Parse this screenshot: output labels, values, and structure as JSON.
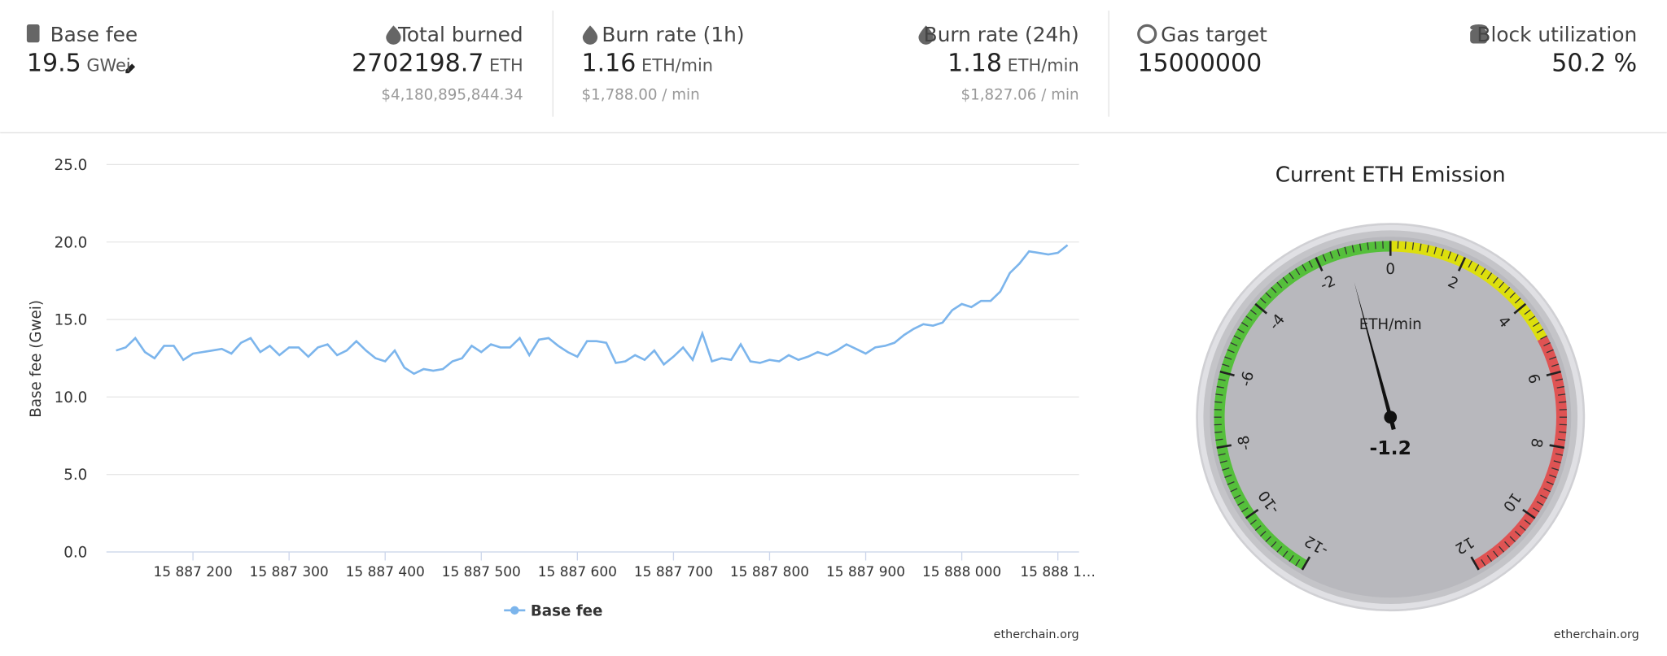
{
  "stats": [
    {
      "label": "Base fee",
      "value": "19.5",
      "unit": "GWei"
    },
    {
      "label": "Total burned",
      "value": "2702198.7",
      "unit": "ETH",
      "usd": "$4,180,895,844.34"
    },
    {
      "label": "Burn rate (1h)",
      "value": "1.16",
      "unit": "ETH/min",
      "usd": "$1,788.00 / min"
    },
    {
      "label": "Burn rate (24h)",
      "value": "1.18",
      "unit": "ETH/min",
      "usd": "$1,827.06 / min"
    },
    {
      "label": "Gas target",
      "value": "15000000"
    },
    {
      "label": "Block utilization",
      "value": "50.2 %"
    }
  ],
  "chart_data": [
    {
      "type": "line",
      "ylabel": "Base fee (Gwei)",
      "credit": "etherchain.org",
      "x": [
        15887120,
        15887130,
        15887140,
        15887150,
        15887160,
        15887170,
        15887180,
        15887190,
        15887200,
        15887210,
        15887220,
        15887230,
        15887240,
        15887250,
        15887260,
        15887270,
        15887280,
        15887290,
        15887300,
        15887310,
        15887320,
        15887330,
        15887340,
        15887350,
        15887360,
        15887370,
        15887380,
        15887390,
        15887400,
        15887410,
        15887420,
        15887430,
        15887440,
        15887450,
        15887460,
        15887470,
        15887480,
        15887490,
        15887500,
        15887510,
        15887520,
        15887530,
        15887540,
        15887550,
        15887560,
        15887570,
        15887580,
        15887590,
        15887600,
        15887610,
        15887620,
        15887630,
        15887640,
        15887650,
        15887660,
        15887670,
        15887680,
        15887690,
        15887700,
        15887710,
        15887720,
        15887730,
        15887740,
        15887750,
        15887760,
        15887770,
        15887780,
        15887790,
        15887800,
        15887810,
        15887820,
        15887830,
        15887840,
        15887850,
        15887860,
        15887870,
        15887880,
        15887890,
        15887900,
        15887910,
        15887920,
        15887930,
        15887940,
        15887950,
        15887960,
        15887970,
        15887980,
        15887990,
        15888000,
        15888010,
        15888020,
        15888030,
        15888040,
        15888050,
        15888060,
        15888070,
        15888080,
        15888090,
        15888100,
        15888110
      ],
      "series": [
        {
          "name": "Base fee",
          "color": "#7cb5ec",
          "values": [
            13.0,
            13.2,
            13.8,
            12.9,
            12.5,
            13.3,
            13.3,
            12.4,
            12.8,
            12.9,
            13.0,
            13.1,
            12.8,
            13.5,
            13.8,
            12.9,
            13.3,
            12.7,
            13.2,
            13.2,
            12.6,
            13.2,
            13.4,
            12.7,
            13.0,
            13.6,
            13.0,
            12.5,
            12.3,
            13.0,
            11.9,
            11.5,
            11.8,
            11.7,
            11.8,
            12.3,
            12.5,
            13.3,
            12.9,
            13.4,
            13.2,
            13.2,
            13.8,
            12.7,
            13.7,
            13.8,
            13.3,
            12.9,
            12.6,
            13.6,
            13.6,
            13.5,
            12.2,
            12.3,
            12.7,
            12.4,
            13.0,
            12.1,
            12.6,
            13.2,
            12.4,
            14.1,
            12.3,
            12.5,
            12.4,
            13.4,
            12.3,
            12.2,
            12.4,
            12.3,
            12.7,
            12.4,
            12.6,
            12.9,
            12.7,
            13.0,
            13.4,
            13.1,
            12.8,
            13.2,
            13.3,
            13.5,
            14.0,
            14.4,
            14.7,
            14.6,
            14.8,
            15.6,
            16.0,
            15.8,
            16.2,
            16.2,
            16.8,
            18.0,
            18.6,
            19.4,
            19.3,
            19.2,
            19.3,
            19.8
          ]
        }
      ],
      "xlim": [
        15887110,
        15888122
      ],
      "xticks": [
        {
          "value": 15887200,
          "label": "15 887 200"
        },
        {
          "value": 15887300,
          "label": "15 887 300"
        },
        {
          "value": 15887400,
          "label": "15 887 400"
        },
        {
          "value": 15887500,
          "label": "15 887 500"
        },
        {
          "value": 15887600,
          "label": "15 887 600"
        },
        {
          "value": 15887700,
          "label": "15 887 700"
        },
        {
          "value": 15887800,
          "label": "15 887 800"
        },
        {
          "value": 15887900,
          "label": "15 887 900"
        },
        {
          "value": 15888000,
          "label": "15 888 000"
        },
        {
          "value": 15888100,
          "label": "15 888 1…"
        }
      ],
      "ylim": [
        0,
        25
      ],
      "yticks": [
        {
          "value": 0,
          "label": "0.0"
        },
        {
          "value": 5,
          "label": "5.0"
        },
        {
          "value": 10,
          "label": "10.0"
        },
        {
          "value": 15,
          "label": "15.0"
        },
        {
          "value": 20,
          "label": "20.0"
        },
        {
          "value": 25,
          "label": "25.0"
        }
      ],
      "grid": true
    },
    {
      "type": "gauge",
      "title": "Current ETH Emission",
      "units": "ETH/min",
      "value": -1.2,
      "credit": "etherchain.org",
      "ylim": [
        -12,
        12
      ],
      "yticks": [
        -12,
        -10,
        -8,
        -6,
        -4,
        -2,
        0,
        2,
        4,
        6,
        8,
        10,
        12
      ],
      "bands": [
        {
          "from": -12,
          "to": 0,
          "color": "#55bf3b"
        },
        {
          "from": 0,
          "to": 5,
          "color": "#dddf0d"
        },
        {
          "from": 5,
          "to": 12,
          "color": "#df5353"
        }
      ]
    }
  ]
}
